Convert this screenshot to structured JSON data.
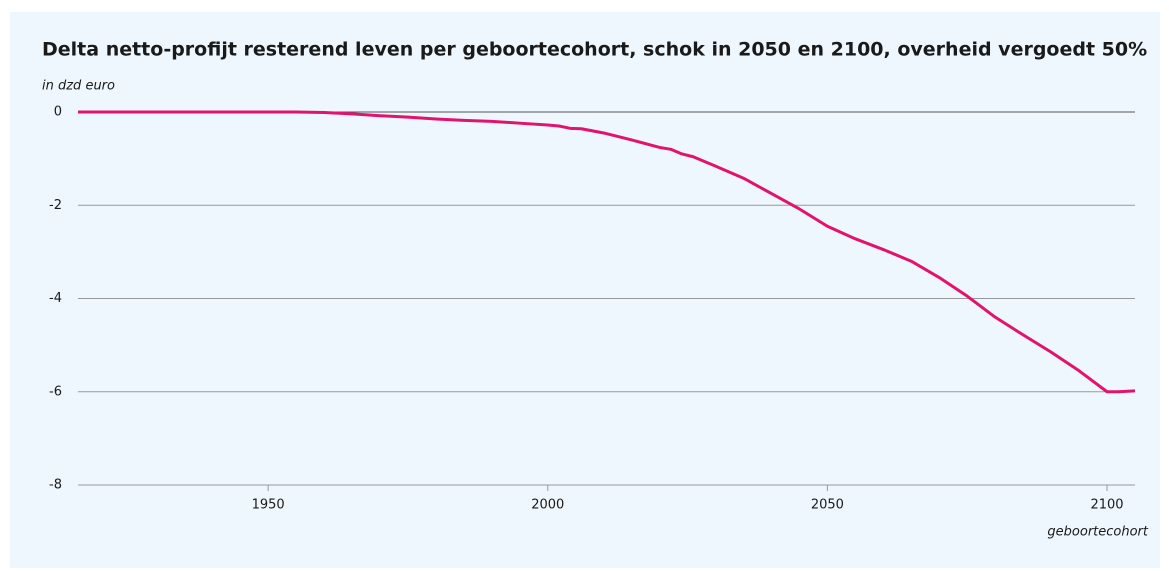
{
  "chart_data": {
    "type": "line",
    "title": "Delta netto-profijt resterend leven per geboortecohort, schok in 2050 en 2100, overheid vergoedt 50%",
    "y_label": "in dzd euro",
    "x_label": "geboortecohort",
    "x": [
      1916,
      1930,
      1940,
      1950,
      1955,
      1960,
      1965,
      1970,
      1975,
      1980,
      1985,
      1990,
      1995,
      2000,
      2002,
      2004,
      2006,
      2010,
      2015,
      2020,
      2022,
      2024,
      2026,
      2030,
      2035,
      2040,
      2045,
      2050,
      2055,
      2060,
      2065,
      2070,
      2075,
      2080,
      2085,
      2090,
      2095,
      2100,
      2102,
      2105
    ],
    "series": [
      {
        "name": "Delta netto-profijt",
        "color": "#e2136e",
        "values": [
          0,
          0,
          0,
          0,
          0,
          -0.01,
          -0.04,
          -0.08,
          -0.11,
          -0.15,
          -0.18,
          -0.2,
          -0.24,
          -0.28,
          -0.3,
          -0.35,
          -0.36,
          -0.45,
          -0.6,
          -0.76,
          -0.8,
          -0.9,
          -0.96,
          -1.16,
          -1.42,
          -1.75,
          -2.08,
          -2.45,
          -2.72,
          -2.95,
          -3.2,
          -3.55,
          -3.95,
          -4.4,
          -4.78,
          -5.15,
          -5.55,
          -6.0,
          -6.0,
          -5.98
        ]
      }
    ],
    "xlim": [
      1916,
      2105
    ],
    "xticks": [
      1950,
      2000,
      2050,
      2100
    ],
    "ylim": [
      -8,
      0.1
    ],
    "yticks": [
      0,
      -2,
      -4,
      -6,
      -8
    ],
    "grid": true
  }
}
